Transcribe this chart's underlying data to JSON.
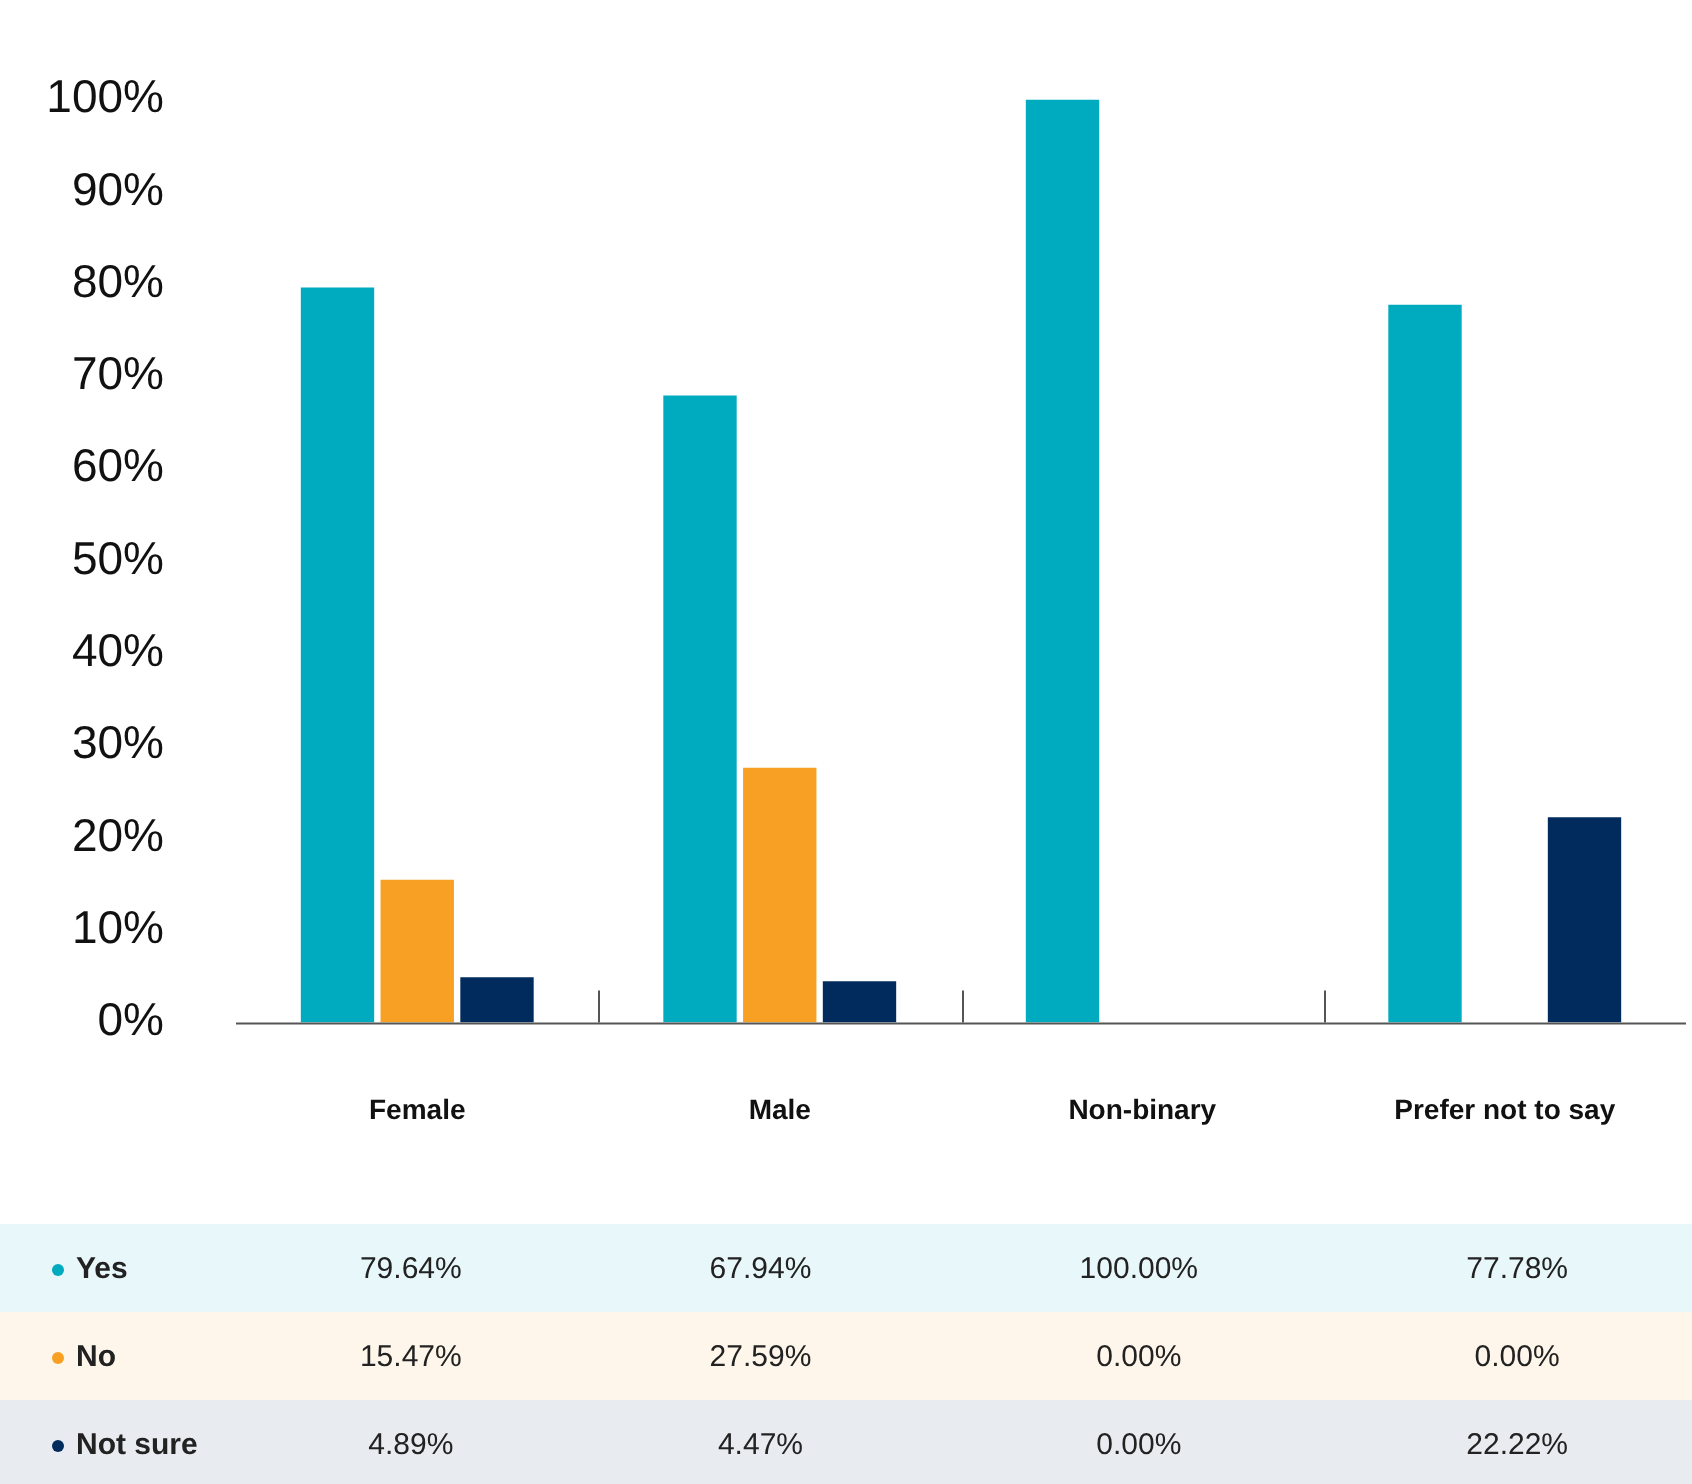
{
  "chart_data": {
    "type": "bar",
    "categories": [
      "Female",
      "Male",
      "Non-binary",
      "Prefer not to say"
    ],
    "series": [
      {
        "name": "Yes",
        "color": "#00abc0",
        "values": [
          79.64,
          67.94,
          100,
          77.78
        ],
        "value_labels": [
          "79.64%",
          "67.94%",
          "100.00%",
          "77.78%"
        ]
      },
      {
        "name": "No",
        "color": "#f7a023",
        "values": [
          15.47,
          27.59,
          0,
          0
        ],
        "value_labels": [
          "15.47%",
          "27.59%",
          "0.00%",
          "0.00%"
        ]
      },
      {
        "name": "Not sure",
        "color": "#002b5c",
        "values": [
          4.89,
          4.47,
          0,
          22.22
        ],
        "value_labels": [
          "4.89%",
          "4.47%",
          "0.00%",
          "22.22%"
        ]
      }
    ],
    "ylim": [
      0,
      100
    ],
    "yticks": [
      {
        "value": 0,
        "label": "0%"
      },
      {
        "value": 10,
        "label": "10%"
      },
      {
        "value": 20,
        "label": "20%"
      },
      {
        "value": 30,
        "label": "30%"
      },
      {
        "value": 40,
        "label": "40%"
      },
      {
        "value": 50,
        "label": "50%"
      },
      {
        "value": 60,
        "label": "60%"
      },
      {
        "value": 70,
        "label": "70%"
      },
      {
        "value": 80,
        "label": "80%"
      },
      {
        "value": 90,
        "label": "90%"
      },
      {
        "value": 100,
        "label": "100%"
      }
    ],
    "grid": false,
    "legend": "bottom"
  }
}
